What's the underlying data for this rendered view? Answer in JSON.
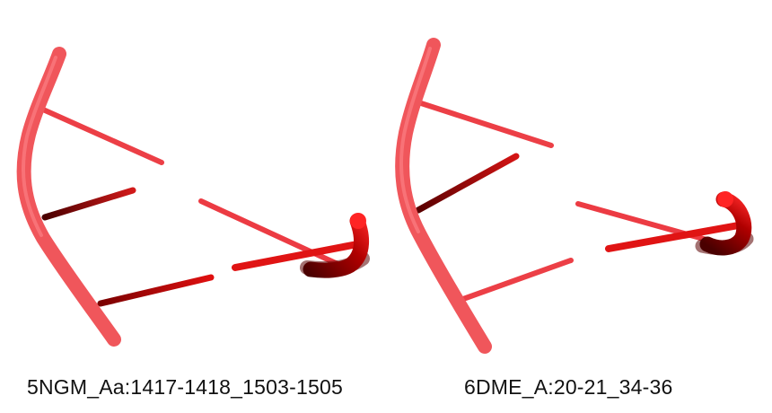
{
  "panels": [
    {
      "label": "5NGM_Aa:1417-1418_1503-1505"
    },
    {
      "label": "6DME_A:20-21_34-36"
    }
  ],
  "colors": {
    "backbone_light": "#f0565b",
    "backbone_highlight": "#ff8b8e",
    "rod_bright": "#e01414",
    "rod_dark": "#a00000",
    "shadow": "#5a0000"
  }
}
